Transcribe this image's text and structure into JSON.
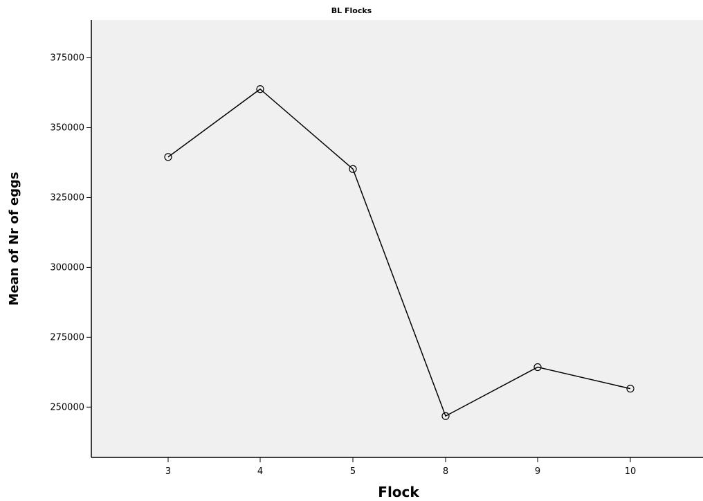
{
  "chart_data": {
    "type": "line",
    "title": "BL Flocks",
    "xlabel": "Flock",
    "ylabel": "Mean of Nr of eggs",
    "categories": [
      "3",
      "4",
      "5",
      "8",
      "9",
      "10"
    ],
    "series": [
      {
        "values": [
          339500,
          363800,
          335200,
          246800,
          264300,
          256600
        ]
      }
    ],
    "ylim": [
      232000,
      388500
    ],
    "yticks": [
      250000,
      275000,
      300000,
      325000,
      350000,
      375000
    ],
    "ytick_labels": [
      "250000",
      "275000",
      "300000",
      "325000",
      "350000",
      "375000"
    ],
    "grid": false,
    "legend": "none",
    "colors": {
      "plot_background": "#f0f0f0",
      "line": "#000000",
      "marker": "#000000"
    }
  }
}
